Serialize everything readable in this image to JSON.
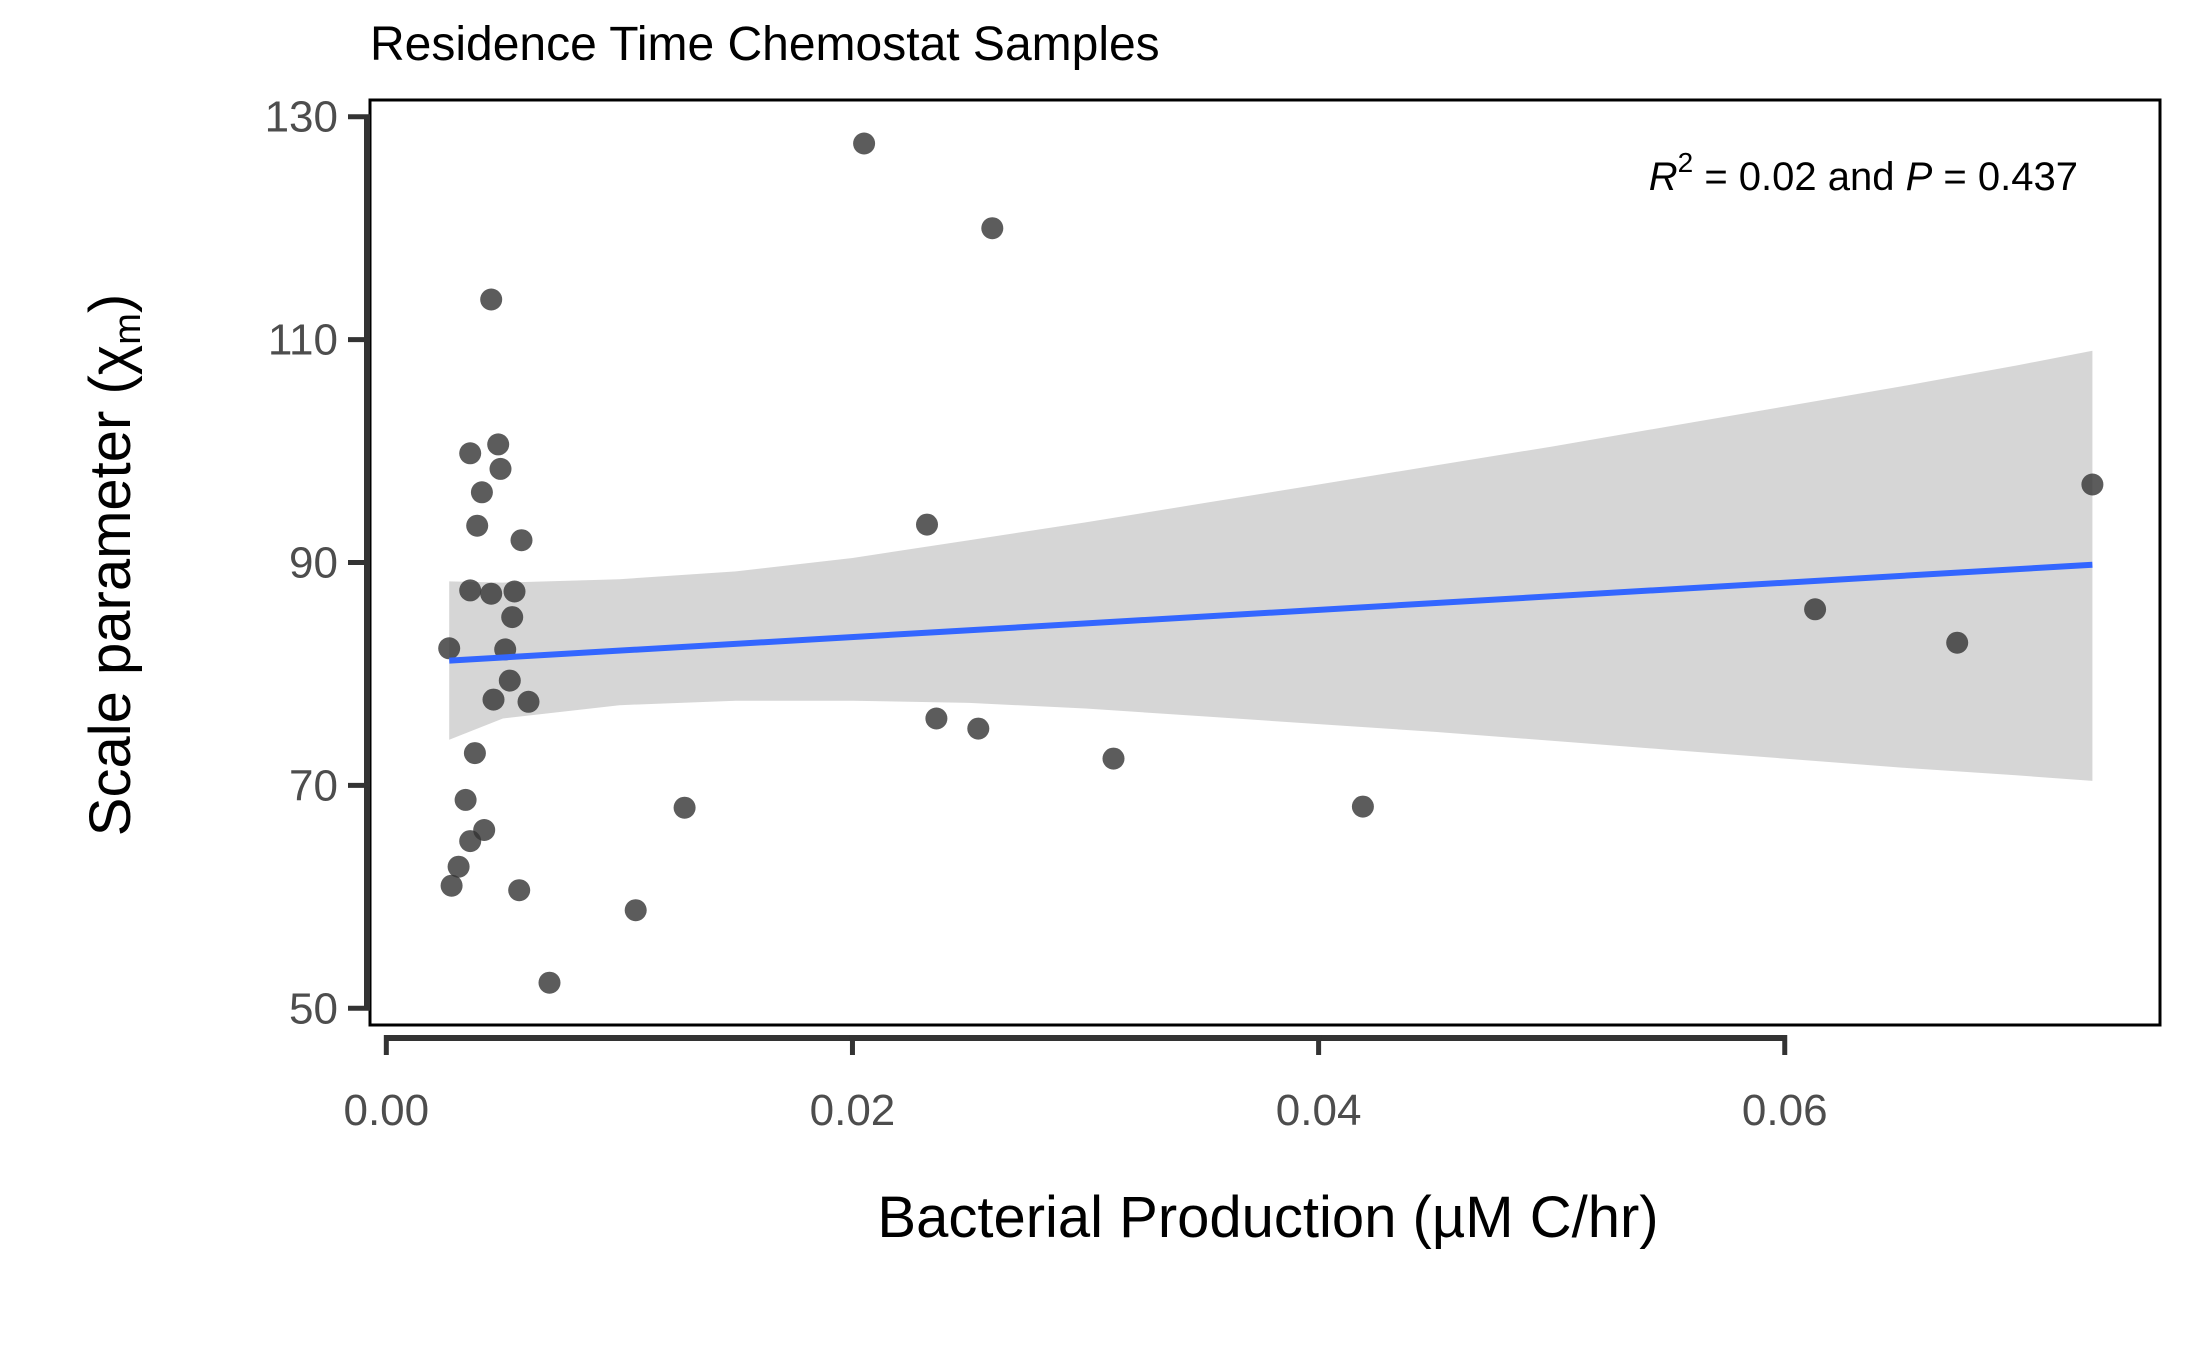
{
  "chart_data": {
    "type": "scatter",
    "title": "Residence Time Chemostat Samples",
    "xlabel": "Bacterial Production (µM C/hr)",
    "ylabel": {
      "main": "Scale parameter (χ",
      "subscript": "m",
      "close": ")"
    },
    "xlim": [
      -0.0007,
      0.0761
    ],
    "ylim": [
      48.5,
      131.5
    ],
    "x_ticks": [
      {
        "value": 0.0,
        "label": "0.00"
      },
      {
        "value": 0.02,
        "label": "0.02"
      },
      {
        "value": 0.04,
        "label": "0.04"
      },
      {
        "value": 0.06,
        "label": "0.06"
      }
    ],
    "y_ticks": [
      {
        "value": 50,
        "label": "50"
      },
      {
        "value": 70,
        "label": "70"
      },
      {
        "value": 90,
        "label": "90"
      },
      {
        "value": 110,
        "label": "110"
      },
      {
        "value": 130,
        "label": "130"
      }
    ],
    "annotation": {
      "r_symbol": "R",
      "r_exponent": "2",
      "r_text": " = 0.02 and ",
      "p_symbol": "P",
      "p_text": " = 0.437"
    },
    "points": [
      {
        "x": 0.0027,
        "y": 82.3
      },
      {
        "x": 0.0028,
        "y": 61.0
      },
      {
        "x": 0.0031,
        "y": 62.7
      },
      {
        "x": 0.0034,
        "y": 68.7
      },
      {
        "x": 0.0036,
        "y": 87.5
      },
      {
        "x": 0.0036,
        "y": 99.8
      },
      {
        "x": 0.0036,
        "y": 65.0
      },
      {
        "x": 0.0038,
        "y": 72.9
      },
      {
        "x": 0.0039,
        "y": 93.3
      },
      {
        "x": 0.0041,
        "y": 96.3
      },
      {
        "x": 0.0042,
        "y": 66.0
      },
      {
        "x": 0.0045,
        "y": 87.2
      },
      {
        "x": 0.0045,
        "y": 113.6
      },
      {
        "x": 0.0046,
        "y": 77.7
      },
      {
        "x": 0.0048,
        "y": 100.6
      },
      {
        "x": 0.0049,
        "y": 98.4
      },
      {
        "x": 0.0051,
        "y": 82.2
      },
      {
        "x": 0.0053,
        "y": 79.4
      },
      {
        "x": 0.0054,
        "y": 85.1
      },
      {
        "x": 0.0055,
        "y": 87.4
      },
      {
        "x": 0.0057,
        "y": 60.6
      },
      {
        "x": 0.0058,
        "y": 92.0
      },
      {
        "x": 0.0061,
        "y": 77.5
      },
      {
        "x": 0.007,
        "y": 52.3
      },
      {
        "x": 0.0107,
        "y": 58.8
      },
      {
        "x": 0.0128,
        "y": 68.0
      },
      {
        "x": 0.0205,
        "y": 127.6
      },
      {
        "x": 0.0232,
        "y": 93.4
      },
      {
        "x": 0.0236,
        "y": 76.0
      },
      {
        "x": 0.0254,
        "y": 75.1
      },
      {
        "x": 0.026,
        "y": 120.0
      },
      {
        "x": 0.0312,
        "y": 72.4
      },
      {
        "x": 0.0419,
        "y": 68.1
      },
      {
        "x": 0.0613,
        "y": 85.8
      },
      {
        "x": 0.0674,
        "y": 82.8
      },
      {
        "x": 0.0732,
        "y": 97.0
      }
    ],
    "fit_line": {
      "x": [
        0.0027,
        0.0732
      ],
      "y": [
        81.2,
        89.8
      ]
    },
    "confidence_band": {
      "x": [
        0.0027,
        0.005,
        0.01,
        0.015,
        0.02,
        0.025,
        0.03,
        0.035,
        0.04,
        0.045,
        0.05,
        0.055,
        0.06,
        0.065,
        0.07,
        0.0732
      ],
      "upper": [
        88.3,
        88.2,
        88.5,
        89.2,
        90.4,
        92.0,
        93.6,
        95.3,
        97.0,
        98.7,
        100.4,
        102.2,
        104.0,
        105.8,
        107.7,
        109.0
      ],
      "lower": [
        74.1,
        76.0,
        77.2,
        77.6,
        77.6,
        77.4,
        76.9,
        76.2,
        75.5,
        74.8,
        74.0,
        73.2,
        72.4,
        71.6,
        70.9,
        70.4
      ]
    },
    "grid": false,
    "legend": "none",
    "colors": {
      "points": "#333333",
      "fit_line": "#3366ff",
      "band": "#cccccc",
      "axis": "#000000",
      "tick_label": "#4d4d4d"
    }
  }
}
